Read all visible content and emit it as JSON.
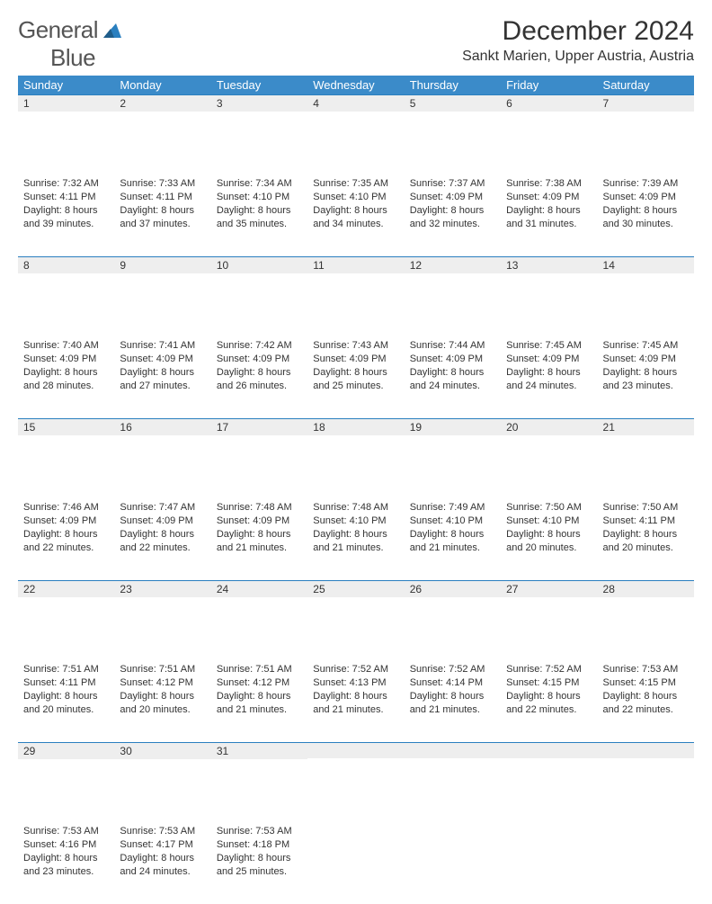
{
  "logo": {
    "word1": "General",
    "word2": "Blue"
  },
  "title": "December 2024",
  "subtitle": "Sankt Marien, Upper Austria, Austria",
  "colors": {
    "header_bg": "#3b8bc9",
    "header_fg": "#ffffff",
    "daynum_bg": "#eeeeee",
    "rule": "#2a7fbf",
    "text": "#333333",
    "logo_gray": "#555555",
    "logo_blue": "#2a7fbf"
  },
  "day_labels": [
    "Sunday",
    "Monday",
    "Tuesday",
    "Wednesday",
    "Thursday",
    "Friday",
    "Saturday"
  ],
  "weeks": [
    [
      {
        "n": "1",
        "sr": "7:32 AM",
        "ss": "4:11 PM",
        "dl": "8 hours and 39 minutes."
      },
      {
        "n": "2",
        "sr": "7:33 AM",
        "ss": "4:11 PM",
        "dl": "8 hours and 37 minutes."
      },
      {
        "n": "3",
        "sr": "7:34 AM",
        "ss": "4:10 PM",
        "dl": "8 hours and 35 minutes."
      },
      {
        "n": "4",
        "sr": "7:35 AM",
        "ss": "4:10 PM",
        "dl": "8 hours and 34 minutes."
      },
      {
        "n": "5",
        "sr": "7:37 AM",
        "ss": "4:09 PM",
        "dl": "8 hours and 32 minutes."
      },
      {
        "n": "6",
        "sr": "7:38 AM",
        "ss": "4:09 PM",
        "dl": "8 hours and 31 minutes."
      },
      {
        "n": "7",
        "sr": "7:39 AM",
        "ss": "4:09 PM",
        "dl": "8 hours and 30 minutes."
      }
    ],
    [
      {
        "n": "8",
        "sr": "7:40 AM",
        "ss": "4:09 PM",
        "dl": "8 hours and 28 minutes."
      },
      {
        "n": "9",
        "sr": "7:41 AM",
        "ss": "4:09 PM",
        "dl": "8 hours and 27 minutes."
      },
      {
        "n": "10",
        "sr": "7:42 AM",
        "ss": "4:09 PM",
        "dl": "8 hours and 26 minutes."
      },
      {
        "n": "11",
        "sr": "7:43 AM",
        "ss": "4:09 PM",
        "dl": "8 hours and 25 minutes."
      },
      {
        "n": "12",
        "sr": "7:44 AM",
        "ss": "4:09 PM",
        "dl": "8 hours and 24 minutes."
      },
      {
        "n": "13",
        "sr": "7:45 AM",
        "ss": "4:09 PM",
        "dl": "8 hours and 24 minutes."
      },
      {
        "n": "14",
        "sr": "7:45 AM",
        "ss": "4:09 PM",
        "dl": "8 hours and 23 minutes."
      }
    ],
    [
      {
        "n": "15",
        "sr": "7:46 AM",
        "ss": "4:09 PM",
        "dl": "8 hours and 22 minutes."
      },
      {
        "n": "16",
        "sr": "7:47 AM",
        "ss": "4:09 PM",
        "dl": "8 hours and 22 minutes."
      },
      {
        "n": "17",
        "sr": "7:48 AM",
        "ss": "4:09 PM",
        "dl": "8 hours and 21 minutes."
      },
      {
        "n": "18",
        "sr": "7:48 AM",
        "ss": "4:10 PM",
        "dl": "8 hours and 21 minutes."
      },
      {
        "n": "19",
        "sr": "7:49 AM",
        "ss": "4:10 PM",
        "dl": "8 hours and 21 minutes."
      },
      {
        "n": "20",
        "sr": "7:50 AM",
        "ss": "4:10 PM",
        "dl": "8 hours and 20 minutes."
      },
      {
        "n": "21",
        "sr": "7:50 AM",
        "ss": "4:11 PM",
        "dl": "8 hours and 20 minutes."
      }
    ],
    [
      {
        "n": "22",
        "sr": "7:51 AM",
        "ss": "4:11 PM",
        "dl": "8 hours and 20 minutes."
      },
      {
        "n": "23",
        "sr": "7:51 AM",
        "ss": "4:12 PM",
        "dl": "8 hours and 20 minutes."
      },
      {
        "n": "24",
        "sr": "7:51 AM",
        "ss": "4:12 PM",
        "dl": "8 hours and 21 minutes."
      },
      {
        "n": "25",
        "sr": "7:52 AM",
        "ss": "4:13 PM",
        "dl": "8 hours and 21 minutes."
      },
      {
        "n": "26",
        "sr": "7:52 AM",
        "ss": "4:14 PM",
        "dl": "8 hours and 21 minutes."
      },
      {
        "n": "27",
        "sr": "7:52 AM",
        "ss": "4:15 PM",
        "dl": "8 hours and 22 minutes."
      },
      {
        "n": "28",
        "sr": "7:53 AM",
        "ss": "4:15 PM",
        "dl": "8 hours and 22 minutes."
      }
    ],
    [
      {
        "n": "29",
        "sr": "7:53 AM",
        "ss": "4:16 PM",
        "dl": "8 hours and 23 minutes."
      },
      {
        "n": "30",
        "sr": "7:53 AM",
        "ss": "4:17 PM",
        "dl": "8 hours and 24 minutes."
      },
      {
        "n": "31",
        "sr": "7:53 AM",
        "ss": "4:18 PM",
        "dl": "8 hours and 25 minutes."
      },
      null,
      null,
      null,
      null
    ]
  ],
  "labels": {
    "sunrise": "Sunrise: ",
    "sunset": "Sunset: ",
    "daylight": "Daylight: "
  }
}
